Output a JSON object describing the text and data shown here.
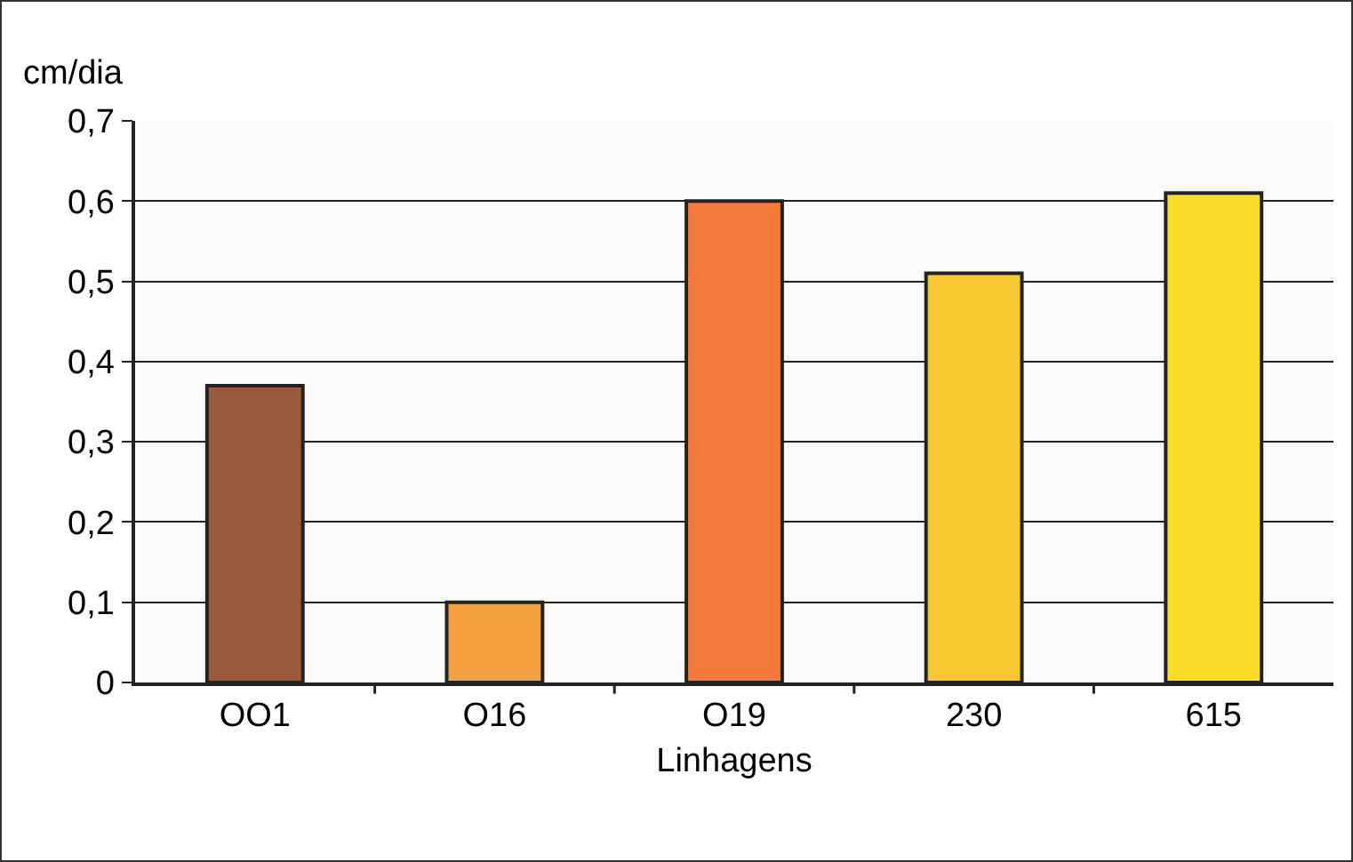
{
  "chart_data": {
    "type": "bar",
    "ylabel": "cm/dia",
    "xlabel": "Linhagens",
    "categories": [
      "OO1",
      "O16",
      "O19",
      "230",
      "615"
    ],
    "values": [
      0.37,
      0.1,
      0.6,
      0.51,
      0.61
    ],
    "colors": [
      "#9a5a3c",
      "#f2a040",
      "#f47a3c",
      "#f8c832",
      "#f8dc28"
    ],
    "ylim": [
      0,
      0.7
    ],
    "yticks": [
      0,
      {
        "value": 0.1,
        "label": "0,1"
      },
      {
        "value": 0.2,
        "label": "0,2"
      },
      {
        "value": 0.3,
        "label": "0,3"
      },
      {
        "value": 0.4,
        "label": "0,4"
      },
      {
        "value": 0.5,
        "label": "0,5"
      },
      {
        "value": 0.6,
        "label": "0,6"
      },
      {
        "value": 0.7,
        "label": "0,7"
      }
    ],
    "grid": "y"
  }
}
